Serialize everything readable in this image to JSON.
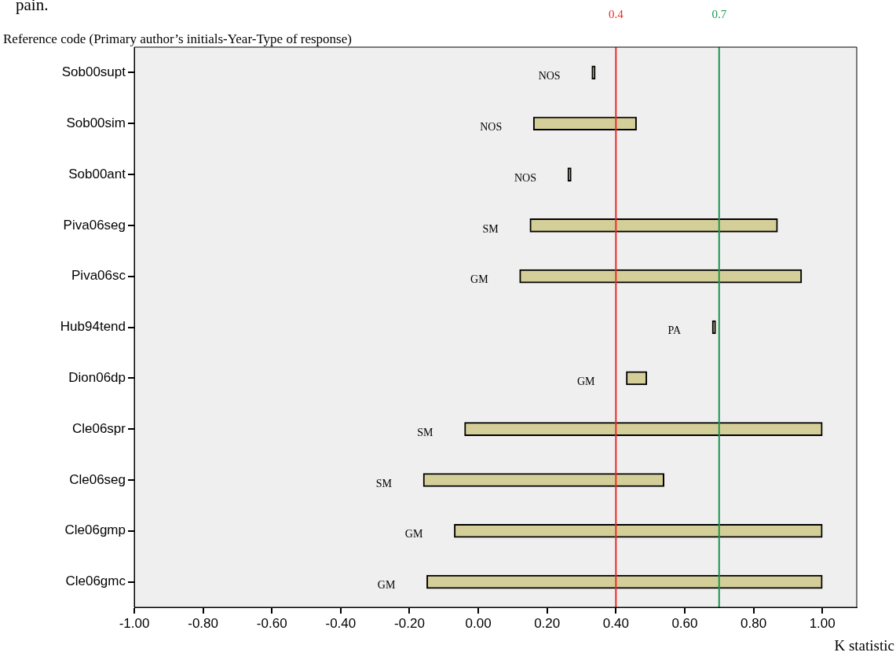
{
  "chart_data": {
    "type": "bar",
    "orientation": "horizontal",
    "ylabel": "Reference code (Primary author’s initials-Year-Type of response)",
    "xlabel": "K statistic",
    "categories": [
      "Sob00supt",
      "Sob00sim",
      "Sob00ant",
      "Piva06seg",
      "Piva06sc",
      "Hub94tend",
      "Dion06dp",
      "Cle06spr",
      "Cle06seg",
      "Cle06gmp",
      "Cle06gmc"
    ],
    "base": [
      0.33,
      0.16,
      0.26,
      0.15,
      0.12,
      0.68,
      0.43,
      -0.04,
      -0.16,
      -0.07,
      -0.15
    ],
    "values": [
      0.01,
      0.3,
      0.01,
      0.72,
      0.82,
      0.01,
      0.06,
      1.04,
      0.7,
      1.07,
      1.15
    ],
    "color": "#d4cf99",
    "xlim": [
      -1.0,
      1.1
    ],
    "xticks": [
      {
        "value": -1,
        "label": "-1.00"
      },
      {
        "value": -0.8,
        "label": "-0.80"
      },
      {
        "value": -0.6,
        "label": "-0.60"
      },
      {
        "value": -0.4,
        "label": "-0.40"
      },
      {
        "value": -0.2,
        "label": "-0.20"
      },
      {
        "value": 0,
        "label": "0.00"
      },
      {
        "value": 0.2,
        "label": "0.20"
      },
      {
        "value": 0.4,
        "label": "0.40"
      },
      {
        "value": 0.6,
        "label": "0.60"
      },
      {
        "value": 0.8,
        "label": "0.80"
      },
      {
        "value": 1,
        "label": "1.00"
      }
    ],
    "ref_lines": [
      {
        "axis": "x",
        "value": 0.4,
        "label": "0.4",
        "color": "#ee2a2a"
      },
      {
        "axis": "x",
        "value": 0.7,
        "label": "0.7",
        "color": "#1a9850"
      }
    ],
    "value_labels": [
      "NOS",
      "NOS",
      "NOS",
      "SM",
      "GM",
      "PA",
      "GM",
      "SM",
      "SM",
      "GM",
      "GM"
    ],
    "annotations": [
      "pain."
    ]
  }
}
